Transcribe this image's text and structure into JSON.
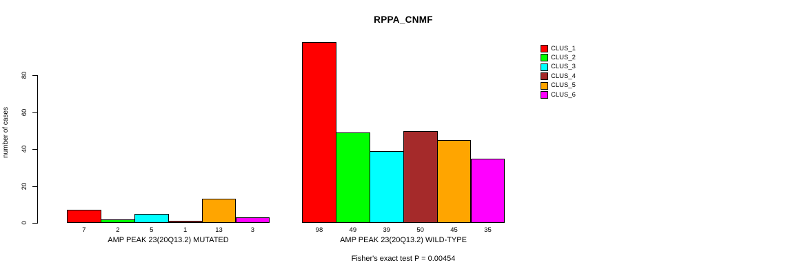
{
  "chart_data": {
    "type": "bar",
    "title": "RPPA_CNMF",
    "ylabel": "number of cases",
    "yticks": [
      0,
      20,
      40,
      60,
      80
    ],
    "ylim": [
      0,
      98
    ],
    "grid": false,
    "legend_position": "right",
    "groups": [
      {
        "label": "AMP PEAK 23(20Q13.2) MUTATED",
        "values": [
          7,
          2,
          5,
          1,
          13,
          3
        ]
      },
      {
        "label": "AMP PEAK 23(20Q13.2) WILD-TYPE",
        "values": [
          98,
          49,
          39,
          50,
          45,
          35
        ]
      }
    ],
    "legend": [
      "CLUS_1",
      "CLUS_2",
      "CLUS_3",
      "CLUS_4",
      "CLUS_5",
      "CLUS_6"
    ],
    "series_colors": [
      "#FF0000",
      "#00FF00",
      "#00FFFF",
      "#A52A2A",
      "#FFA500",
      "#FF00FF"
    ],
    "annotation": "Fisher's exact test P = 0.00454",
    "axis_color": "#000000",
    "background_color": "#FFFFFF"
  }
}
